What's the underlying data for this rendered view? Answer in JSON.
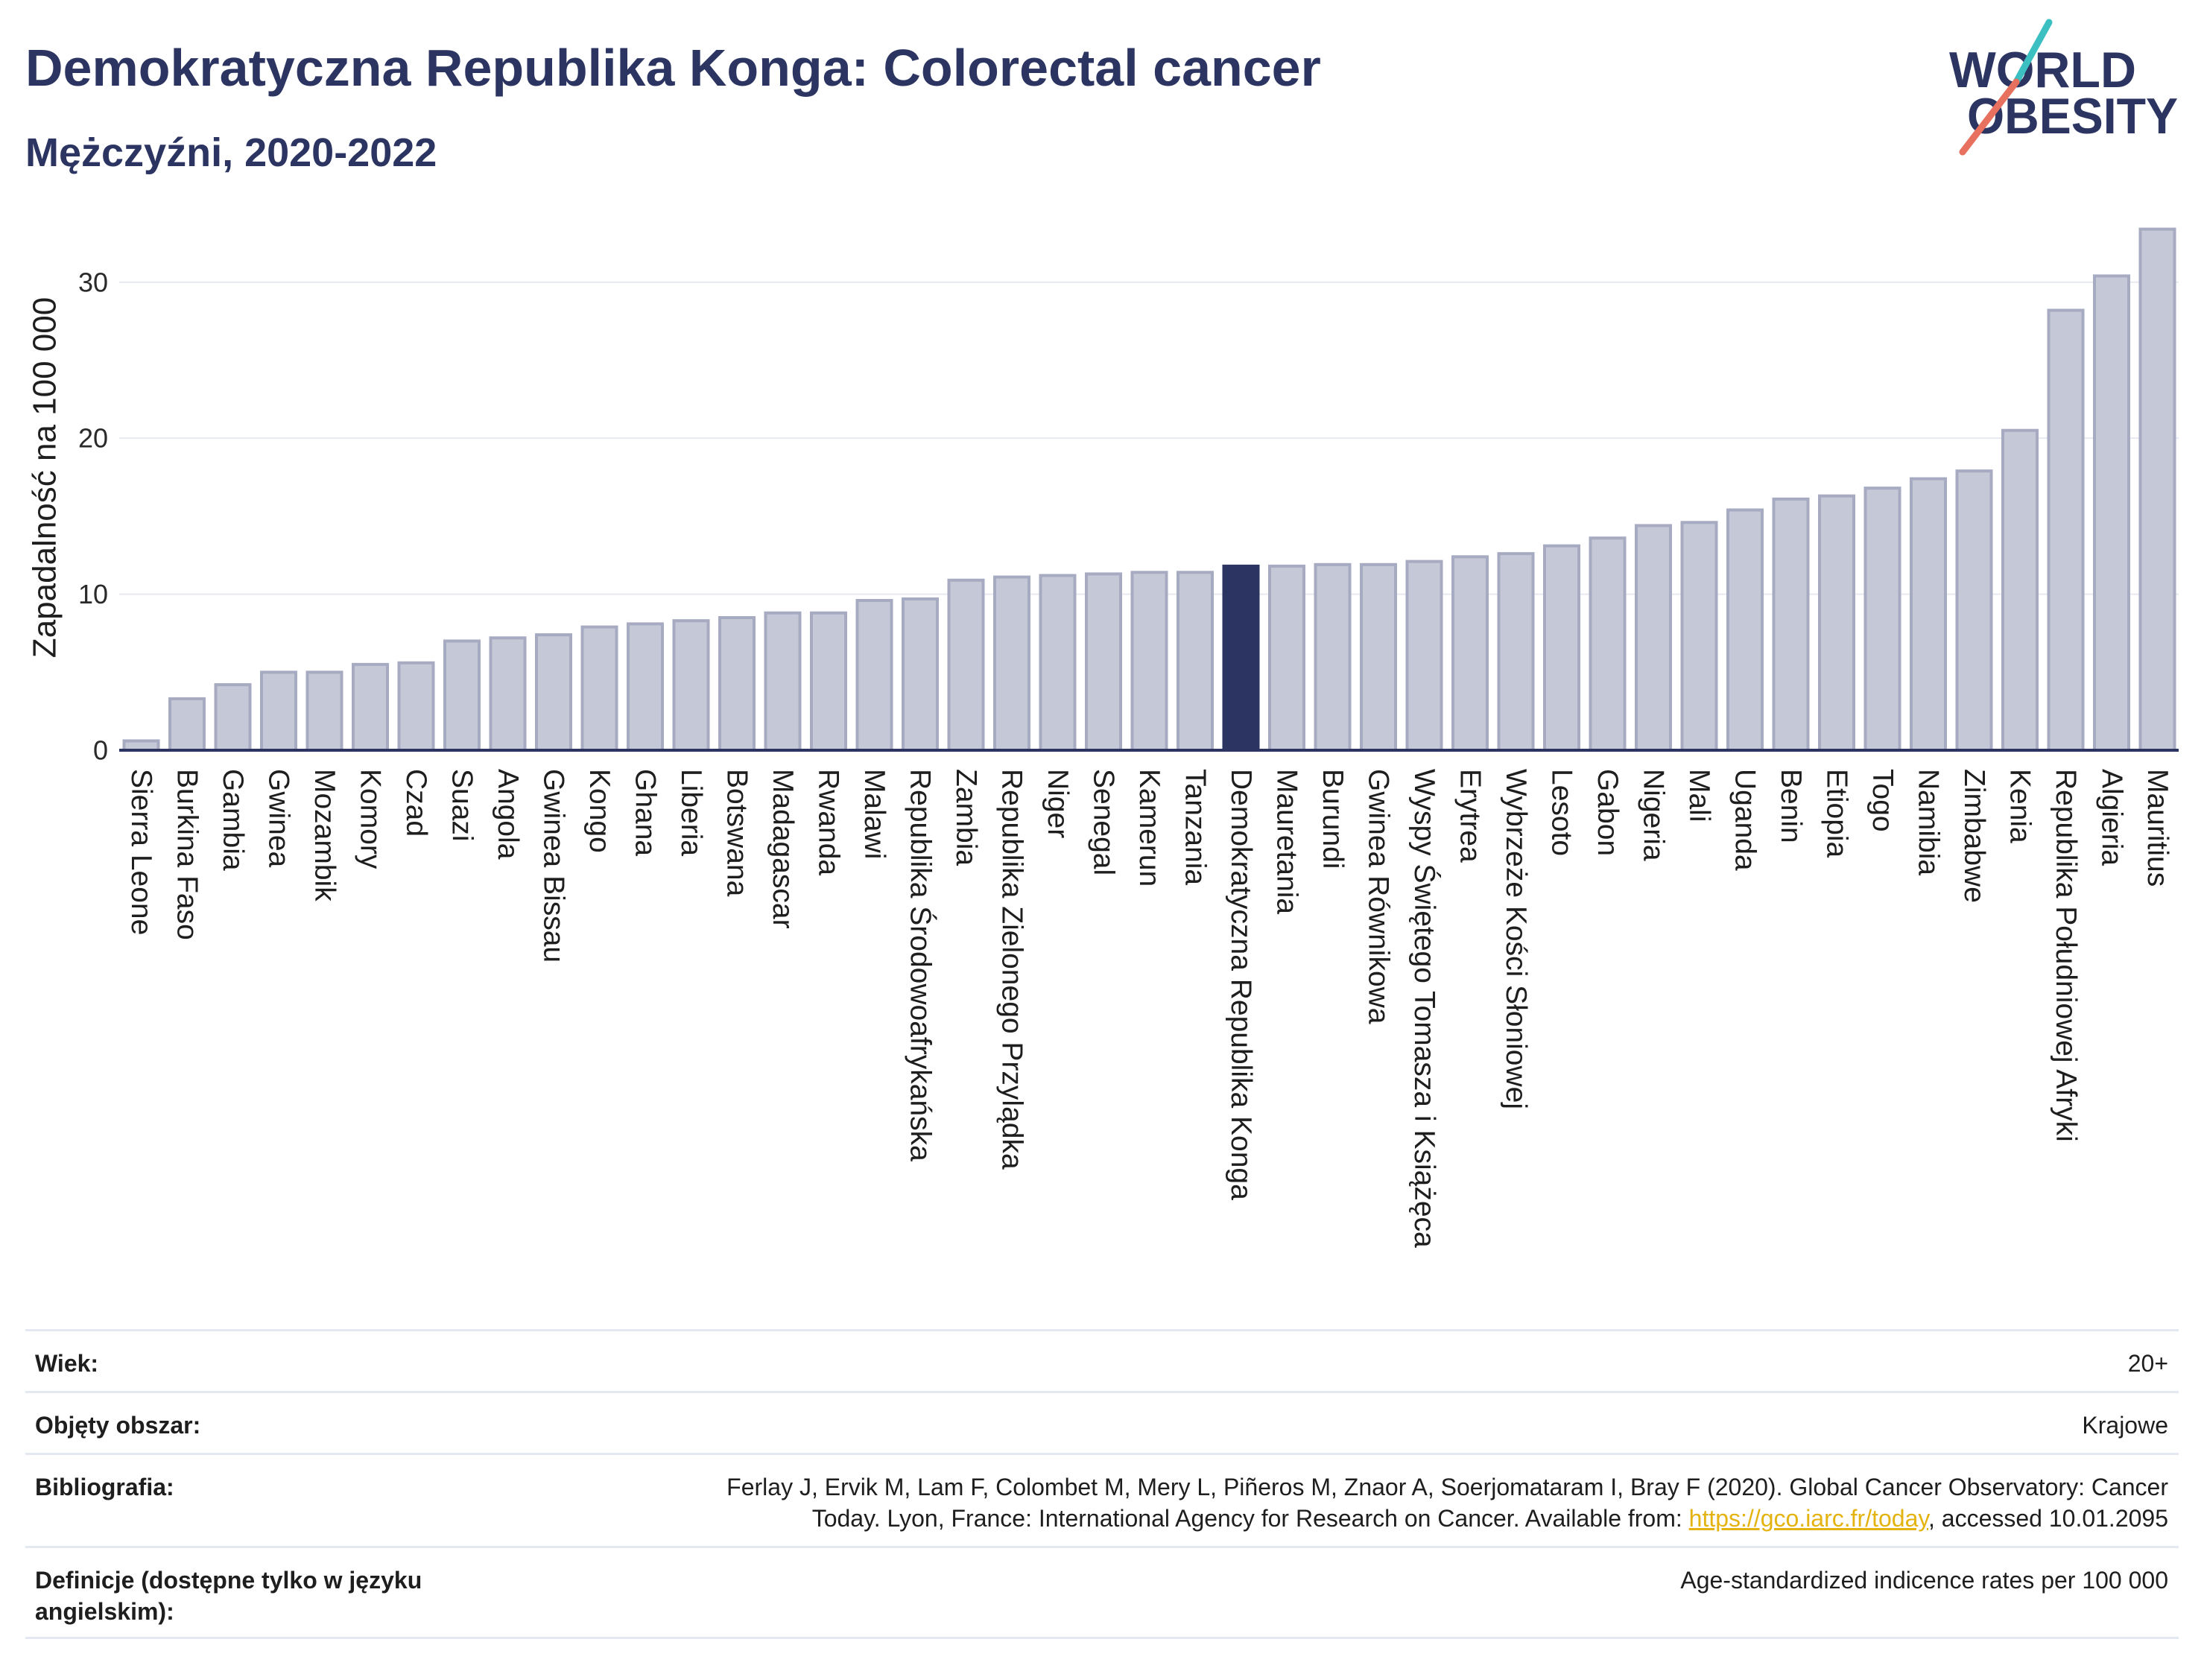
{
  "theme": {
    "title_color": "#2c3562",
    "text_color": "#1e1e1e",
    "divider_color": "#e4e8f0",
    "link_color": "#e4b30f"
  },
  "logo": {
    "line1": "WORLD",
    "line2": "OBESITY",
    "colors": {
      "text": "#2c3562",
      "slash_top": "#3bbfc1",
      "slash_bottom": "#e8705e"
    }
  },
  "chart_data": {
    "type": "bar",
    "title": "Demokratyczna Republika Konga: Colorectal cancer",
    "subtitle": "Mężczyźni, 2020-2022",
    "ylabel": "Zapadalność na 100 000",
    "ylim": [
      0,
      34
    ],
    "yticks": [
      0,
      10,
      20,
      30
    ],
    "grid": true,
    "highlight": "Demokratyczna Republika Konga",
    "categories": [
      "Sierra Leone",
      "Burkina Faso",
      "Gambia",
      "Gwinea",
      "Mozambik",
      "Komory",
      "Czad",
      "Suazi",
      "Angola",
      "Gwinea Bissau",
      "Kongo",
      "Ghana",
      "Liberia",
      "Botswana",
      "Madagascar",
      "Rwanda",
      "Malawi",
      "Republika Środowoafrykańska",
      "Zambia",
      "Republika Zielonego Przylądka",
      "Niger",
      "Senegal",
      "Kamerun",
      "Tanzania",
      "Demokratyczna Republika Konga",
      "Mauretania",
      "Burundi",
      "Gwinea Równikowa",
      "Wyspy Świętego Tomasza i Książęca",
      "Erytrea",
      "Wybrzeże Kości Słoniowej",
      "Lesoto",
      "Gabon",
      "Nigeria",
      "Mali",
      "Uganda",
      "Benin",
      "Etiopia",
      "Togo",
      "Namibia",
      "Zimbabwe",
      "Kenia",
      "Republika Południowej Afryki",
      "Algieria",
      "Mauritius"
    ],
    "values": [
      0.6,
      3.3,
      4.2,
      5.0,
      5.0,
      5.5,
      5.6,
      7.0,
      7.2,
      7.4,
      7.9,
      8.1,
      8.3,
      8.5,
      8.8,
      8.8,
      9.6,
      9.7,
      10.9,
      11.1,
      11.2,
      11.3,
      11.4,
      11.4,
      11.8,
      11.8,
      11.9,
      11.9,
      12.1,
      12.4,
      12.6,
      13.1,
      13.6,
      14.4,
      14.6,
      15.4,
      16.1,
      16.3,
      16.8,
      17.4,
      17.9,
      20.5,
      28.2,
      30.4,
      33.4
    ],
    "colors": {
      "bar": "#c5c8d6",
      "bar_border": "#a6abc2",
      "highlight": "#2c3562",
      "axis": "#2c3562",
      "grid": "#e6e9f1"
    }
  },
  "footer": {
    "age": {
      "label": "Wiek:",
      "value": "20+"
    },
    "coverage": {
      "label": "Objęty obszar:",
      "value": "Krajowe"
    },
    "bibliography": {
      "label": "Bibliografia:",
      "line1": "Ferlay J, Ervik M, Lam F, Colombet M, Mery L, Piñeros M, Znaor A, Soerjomataram I, Bray F (2020). Global Cancer Observatory: Cancer",
      "line2": "Today. Lyon, France: International Agency for Research on Cancer. Available from: ",
      "link": "https://gco.iarc.fr/today",
      "line2_end": ", accessed 10.01.2095"
    },
    "definitions": {
      "label": "Definicje (dostępne tylko w języku angielskim):",
      "value": "Age-standardized indicence rates per 100 000"
    }
  }
}
